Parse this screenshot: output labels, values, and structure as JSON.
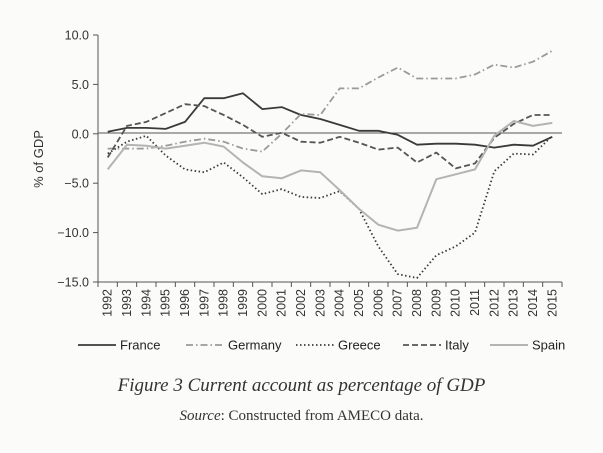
{
  "figure": {
    "title": "Figure 3  Current account as percentage of GDP",
    "source_label": "Source",
    "source_text": ": Constructed from AMECO data."
  },
  "chart_data": {
    "type": "line",
    "title": "",
    "xlabel": "",
    "ylabel": "% of GDP",
    "ylim": [
      -15,
      10
    ],
    "yticks": [
      10,
      5,
      0,
      -5,
      -10,
      -15
    ],
    "ytick_labels": [
      "10.0",
      "5.0",
      "0.0",
      "−5.0",
      "−10.0",
      "−15.0"
    ],
    "categories": [
      "1992",
      "1993",
      "1994",
      "1995",
      "1996",
      "1997",
      "1998",
      "1999",
      "2000",
      "2001",
      "2002",
      "2003",
      "2004",
      "2005",
      "2006",
      "2007",
      "2008",
      "2009",
      "2010",
      "2011",
      "2012",
      "2013",
      "2014",
      "2015"
    ],
    "legend_position": "bottom",
    "series": [
      {
        "name": "France",
        "color": "#3a3a3a",
        "dash": "solid",
        "values": [
          0.2,
          0.6,
          0.6,
          0.5,
          1.2,
          3.6,
          3.6,
          4.1,
          2.5,
          2.7,
          1.9,
          1.5,
          0.9,
          0.3,
          0.3,
          -0.1,
          -1.1,
          -1.0,
          -1.0,
          -1.1,
          -1.4,
          -1.1,
          -1.2,
          -0.3
        ]
      },
      {
        "name": "Germany",
        "color": "#9a9a9a",
        "dash": "dashdot",
        "values": [
          -1.5,
          -1.5,
          -1.5,
          -1.2,
          -0.8,
          -0.5,
          -0.8,
          -1.5,
          -1.8,
          0.0,
          2.0,
          1.9,
          4.6,
          4.6,
          5.7,
          6.7,
          5.6,
          5.6,
          5.6,
          6.0,
          7.0,
          6.7,
          7.3,
          8.4
        ]
      },
      {
        "name": "Greece",
        "color": "#3a3a3a",
        "dash": "dotted",
        "values": [
          -2.0,
          -0.8,
          -0.2,
          -2.2,
          -3.6,
          -3.9,
          -2.9,
          -4.4,
          -6.1,
          -5.6,
          -6.4,
          -6.5,
          -5.8,
          -7.6,
          -11.4,
          -14.2,
          -14.6,
          -12.3,
          -11.4,
          -10.0,
          -3.8,
          -2.0,
          -2.1,
          -0.2
        ]
      },
      {
        "name": "Italy",
        "color": "#555555",
        "dash": "dashed",
        "values": [
          -2.4,
          0.8,
          1.2,
          2.1,
          3.0,
          2.8,
          1.9,
          0.9,
          -0.3,
          0.1,
          -0.8,
          -0.9,
          -0.3,
          -0.9,
          -1.6,
          -1.4,
          -2.9,
          -1.9,
          -3.5,
          -3.0,
          -0.4,
          1.0,
          1.9,
          1.9
        ]
      },
      {
        "name": "Spain",
        "color": "#b4b4b4",
        "dash": "solid",
        "values": [
          -3.6,
          -1.1,
          -1.2,
          -1.5,
          -1.2,
          -0.9,
          -1.3,
          -2.9,
          -4.3,
          -4.5,
          -3.7,
          -3.9,
          -5.7,
          -7.6,
          -9.2,
          -9.8,
          -9.5,
          -4.6,
          -4.1,
          -3.6,
          -0.2,
          1.3,
          0.8,
          1.1
        ]
      }
    ]
  }
}
